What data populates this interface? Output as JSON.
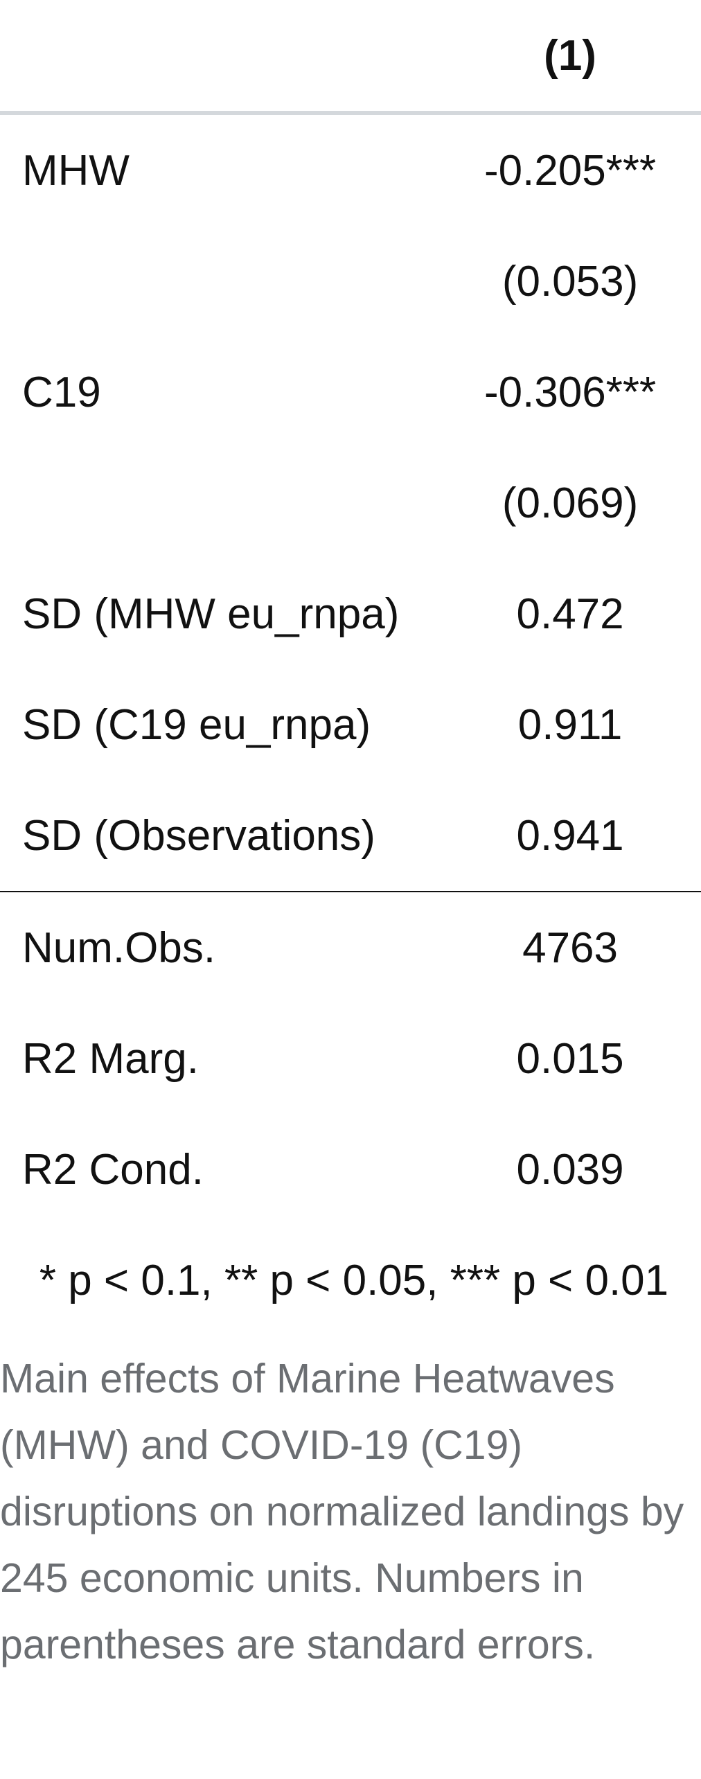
{
  "table": {
    "column_header": "(1)",
    "rows": [
      {
        "label": "MHW",
        "value": "-0.205***"
      },
      {
        "label": "",
        "value": "(0.053)"
      },
      {
        "label": "C19",
        "value": "-0.306***"
      },
      {
        "label": "",
        "value": "(0.069)"
      },
      {
        "label": "SD (MHW eu_rnpa)",
        "value": "0.472"
      },
      {
        "label": "SD (C19 eu_rnpa)",
        "value": "0.911"
      },
      {
        "label": "SD (Observations)",
        "value": "0.941"
      }
    ],
    "stats": [
      {
        "label": "Num.Obs.",
        "value": "4763"
      },
      {
        "label": "R2 Marg.",
        "value": "0.015"
      },
      {
        "label": "R2 Cond.",
        "value": "0.039"
      }
    ],
    "footnote": "* p < 0.1, ** p < 0.05, *** p < 0.01"
  },
  "caption": "Main effects of Marine Heatwaves (MHW) and COVID-19 (C19) disruptions on normalized landings by 245 economic units. Numbers in parentheses are standard errors."
}
